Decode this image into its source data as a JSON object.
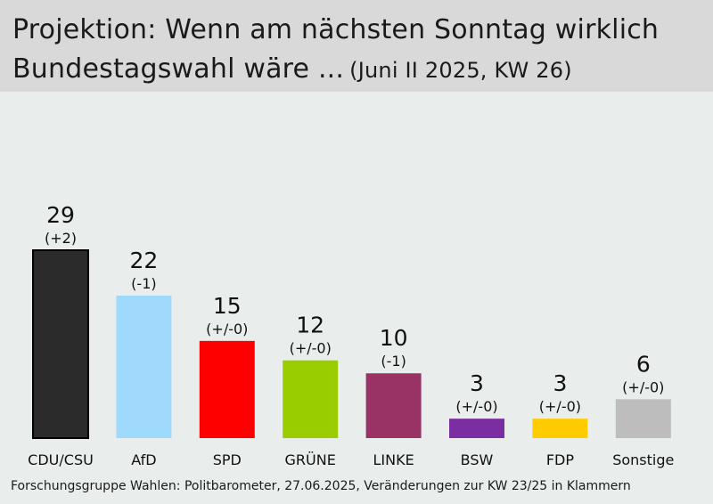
{
  "header": {
    "title_line1": "Projektion: Wenn am nächsten Sonntag wirklich",
    "title_line2": "Bundestagswahl wäre ...",
    "subtitle": "(Juni II 2025, KW 26)"
  },
  "source": "Forschungsgruppe Wahlen: Politbarometer, 27.06.2025, Veränderungen zur KW 23/25 in Klammern",
  "chart_data": {
    "type": "bar",
    "title": "Projektion: Wenn am nächsten Sonntag wirklich Bundestagswahl wäre ...",
    "subtitle": "(Juni II 2025, KW 26)",
    "categories": [
      "CDU/CSU",
      "AfD",
      "SPD",
      "GRÜNE",
      "LINKE",
      "BSW",
      "FDP",
      "Sonstige"
    ],
    "values": [
      29,
      22,
      15,
      12,
      10,
      3,
      3,
      6
    ],
    "changes": [
      "(+2)",
      "(-1)",
      "(+/-0)",
      "(+/-0)",
      "(-1)",
      "(+/-0)",
      "(+/-0)",
      "(+/-0)"
    ],
    "colors": [
      "#2b2b2b",
      "#9fd9fb",
      "#ff0000",
      "#9acd00",
      "#993366",
      "#7b2ea1",
      "#ffcc00",
      "#bdbdbd"
    ],
    "ylim": [
      0,
      29
    ],
    "grid": false,
    "legend": "none"
  }
}
